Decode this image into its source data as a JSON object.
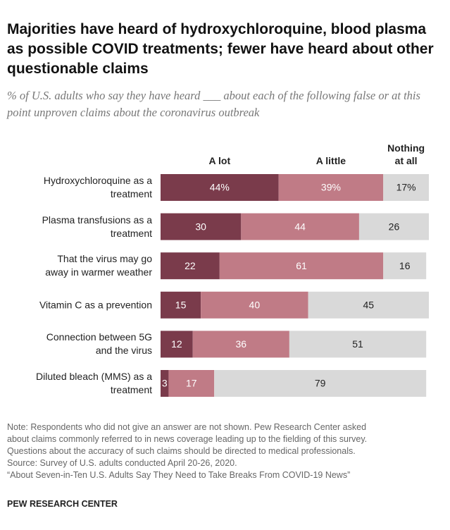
{
  "chart_data": {
    "type": "stacked_bar_horizontal",
    "title": "Majorities have heard of hydroxychloroquine, blood plasma as possible COVID treatments; fewer have heard about other questionable claims",
    "subtitle": "% of U.S. adults who say they have heard ___ about each of the following false or at this point unproven claims about the coronavirus outbreak",
    "categories": [
      "Hydroxychloroquine as a\ntreatment",
      "Plasma transfusions as a\ntreatment",
      "That the virus may go\naway in warmer weather",
      "Vitamin C as a prevention",
      "Connection between 5G\nand the virus",
      "Diluted bleach (MMS) as a\ntreatment"
    ],
    "series": [
      {
        "name": "A lot",
        "color": "#7a3b4b",
        "values": [
          44,
          30,
          22,
          15,
          12,
          3
        ],
        "value_labels": [
          "44%",
          "30",
          "22",
          "15",
          "12",
          "3"
        ]
      },
      {
        "name": "A little",
        "color": "#c07b86",
        "values": [
          39,
          44,
          61,
          40,
          36,
          17
        ],
        "value_labels": [
          "39%",
          "44",
          "61",
          "40",
          "36",
          "17"
        ]
      },
      {
        "name": "Nothing\nat all",
        "color": "#d9d9d9",
        "values": [
          17,
          26,
          16,
          45,
          51,
          79
        ],
        "value_labels": [
          "17%",
          "26",
          "16",
          "45",
          "51",
          "79"
        ]
      }
    ],
    "xlim": [
      0,
      100
    ],
    "notes": [
      "Note: Respondents who did not give an answer are not shown. Pew Research Center asked",
      "about claims commonly referred to in news coverage leading up to the fielding of this survey.",
      "Questions about the accuracy of such claims should be directed to medical professionals.",
      "Source: Survey of U.S. adults conducted April 20-26, 2020.",
      "“About Seven-in-Ten U.S. Adults Say They Need to Take Breaks From COVID-19 News”"
    ],
    "footer": "PEW RESEARCH CENTER"
  }
}
